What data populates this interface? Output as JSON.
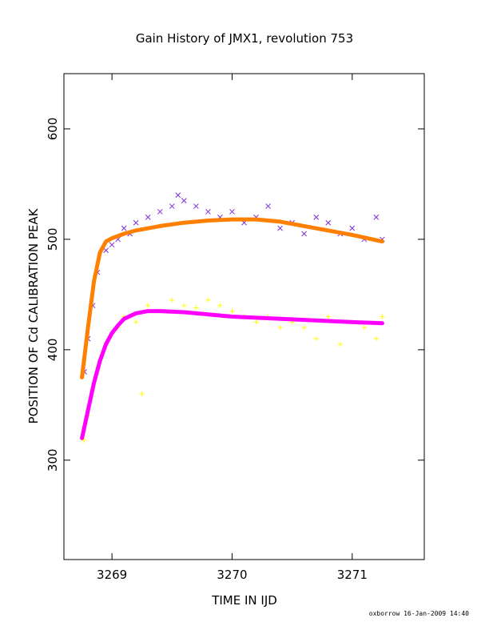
{
  "chart_data": {
    "type": "scatter",
    "title": "Gain History of JMX1, revolution 753",
    "xlabel": "TIME IN IJD",
    "ylabel": "POSITION OF Cd CALIBRATION PEAK",
    "xlim": [
      3268.6,
      3271.6
    ],
    "ylim": [
      210,
      650
    ],
    "x_ticks": [
      "3269",
      "3270",
      "3271"
    ],
    "y_ticks": [
      "300",
      "400",
      "500",
      "600"
    ],
    "x_tick_values": [
      3269,
      3270,
      3271
    ],
    "y_tick_values": [
      300,
      400,
      500,
      600
    ],
    "grid": false,
    "series": [
      {
        "marker": "x",
        "color": "#7b2fd8",
        "points": [
          [
            3268.77,
            380
          ],
          [
            3268.8,
            410
          ],
          [
            3268.84,
            440
          ],
          [
            3268.88,
            470
          ],
          [
            3268.95,
            490
          ],
          [
            3269.0,
            495
          ],
          [
            3269.05,
            500
          ],
          [
            3269.1,
            510
          ],
          [
            3269.15,
            505
          ],
          [
            3269.2,
            515
          ],
          [
            3269.3,
            520
          ],
          [
            3269.4,
            525
          ],
          [
            3269.5,
            530
          ],
          [
            3269.55,
            540
          ],
          [
            3269.6,
            535
          ],
          [
            3269.7,
            530
          ],
          [
            3269.8,
            525
          ],
          [
            3269.9,
            520
          ],
          [
            3270.0,
            525
          ],
          [
            3270.1,
            515
          ],
          [
            3270.2,
            520
          ],
          [
            3270.3,
            530
          ],
          [
            3270.4,
            510
          ],
          [
            3270.5,
            515
          ],
          [
            3270.6,
            505
          ],
          [
            3270.7,
            520
          ],
          [
            3270.8,
            515
          ],
          [
            3270.9,
            505
          ],
          [
            3271.0,
            510
          ],
          [
            3271.1,
            500
          ],
          [
            3271.2,
            520
          ],
          [
            3271.25,
            500
          ]
        ]
      },
      {
        "marker": "+",
        "color": "#ffff00",
        "points": [
          [
            3268.77,
            318
          ],
          [
            3268.8,
            340
          ],
          [
            3268.84,
            365
          ],
          [
            3268.88,
            385
          ],
          [
            3268.95,
            405
          ],
          [
            3269.0,
            415
          ],
          [
            3269.05,
            420
          ],
          [
            3269.1,
            430
          ],
          [
            3269.2,
            425
          ],
          [
            3269.25,
            360
          ],
          [
            3269.3,
            440
          ],
          [
            3269.4,
            435
          ],
          [
            3269.5,
            445
          ],
          [
            3269.6,
            440
          ],
          [
            3269.7,
            438
          ],
          [
            3269.8,
            445
          ],
          [
            3269.9,
            440
          ],
          [
            3270.0,
            435
          ],
          [
            3270.1,
            430
          ],
          [
            3270.2,
            425
          ],
          [
            3270.3,
            430
          ],
          [
            3270.4,
            420
          ],
          [
            3270.5,
            425
          ],
          [
            3270.6,
            420
          ],
          [
            3270.7,
            410
          ],
          [
            3270.8,
            430
          ],
          [
            3270.9,
            405
          ],
          [
            3271.0,
            425
          ],
          [
            3271.1,
            420
          ],
          [
            3271.2,
            410
          ],
          [
            3271.25,
            430
          ]
        ]
      },
      {
        "marker": "line",
        "color": "#ff7f00",
        "points": [
          [
            3268.75,
            375
          ],
          [
            3268.8,
            420
          ],
          [
            3268.85,
            462
          ],
          [
            3268.9,
            488
          ],
          [
            3268.95,
            498
          ],
          [
            3269.0,
            501
          ],
          [
            3269.1,
            505
          ],
          [
            3269.2,
            508
          ],
          [
            3269.4,
            512
          ],
          [
            3269.6,
            515
          ],
          [
            3269.8,
            517
          ],
          [
            3270.0,
            518
          ],
          [
            3270.2,
            518
          ],
          [
            3270.4,
            516
          ],
          [
            3270.6,
            512
          ],
          [
            3270.8,
            508
          ],
          [
            3271.0,
            504
          ],
          [
            3271.25,
            498
          ]
        ]
      },
      {
        "marker": "line",
        "color": "#ff00ff",
        "points": [
          [
            3268.75,
            320
          ],
          [
            3268.8,
            345
          ],
          [
            3268.85,
            370
          ],
          [
            3268.9,
            390
          ],
          [
            3268.95,
            405
          ],
          [
            3269.0,
            415
          ],
          [
            3269.05,
            422
          ],
          [
            3269.1,
            428
          ],
          [
            3269.2,
            433
          ],
          [
            3269.3,
            435
          ],
          [
            3269.4,
            435
          ],
          [
            3269.6,
            434
          ],
          [
            3269.8,
            432
          ],
          [
            3270.0,
            430
          ],
          [
            3270.2,
            429
          ],
          [
            3270.4,
            428
          ],
          [
            3270.6,
            427
          ],
          [
            3270.8,
            426
          ],
          [
            3271.0,
            425
          ],
          [
            3271.25,
            424
          ]
        ]
      }
    ]
  },
  "footer": {
    "credit": "oxborrow 16-Jan-2009 14:40"
  }
}
